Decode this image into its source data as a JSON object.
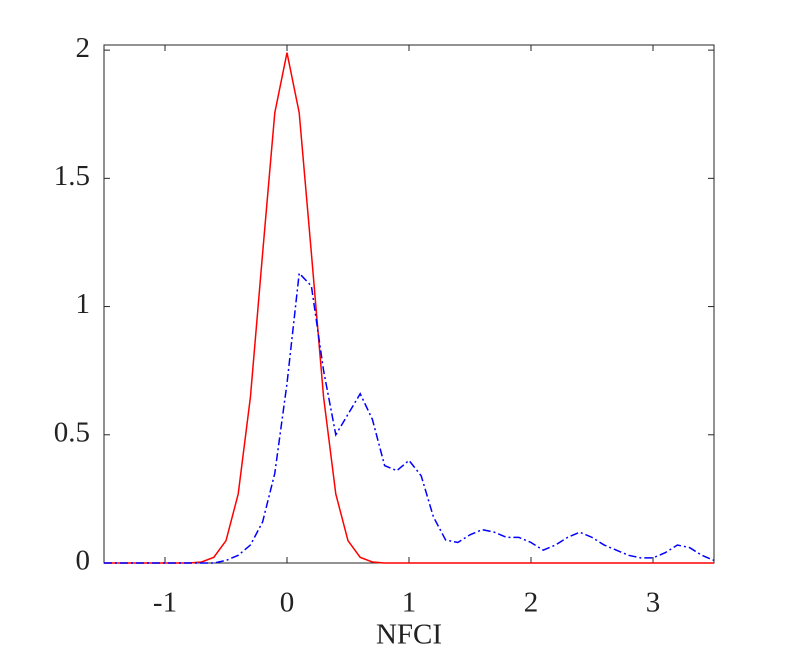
{
  "chart_data": {
    "type": "line",
    "x_label": "NFCI",
    "x": [
      -1.5,
      -1.4,
      -1.3,
      -1.2,
      -1.1,
      -1.0,
      -0.9,
      -0.8,
      -0.7,
      -0.6,
      -0.5,
      -0.4,
      -0.3,
      -0.2,
      -0.1,
      0,
      0.1,
      0.2,
      0.3,
      0.4,
      0.5,
      0.6,
      0.7,
      0.8,
      0.9,
      1.0,
      1.1,
      1.2,
      1.3,
      1.4,
      1.5,
      1.6,
      1.7,
      1.8,
      1.9,
      2.0,
      2.1,
      2.2,
      2.3,
      2.4,
      2.5,
      2.6,
      2.7,
      2.8,
      2.9,
      3.0,
      3.1,
      3.2,
      3.3,
      3.4,
      3.5
    ],
    "series": [
      {
        "color": "#ff0000",
        "dash": "solid",
        "values": [
          0,
          0,
          0,
          0,
          0,
          0,
          0,
          0,
          0.004,
          0.022,
          0.087,
          0.269,
          0.646,
          1.207,
          1.756,
          1.99,
          1.756,
          1.207,
          0.646,
          0.269,
          0.087,
          0.022,
          0.004,
          0,
          0,
          0,
          0,
          0,
          0,
          0,
          0,
          0,
          0,
          0,
          0,
          0,
          0,
          0,
          0,
          0,
          0,
          0,
          0,
          0,
          0,
          0,
          0,
          0,
          0,
          0,
          0
        ]
      },
      {
        "color": "#0000ff",
        "dash": "dashdot",
        "values": [
          0,
          0,
          0,
          0,
          0,
          0,
          0,
          0,
          0,
          0,
          0.01,
          0.03,
          0.07,
          0.16,
          0.35,
          0.7,
          1.13,
          1.08,
          0.75,
          0.5,
          0.58,
          0.66,
          0.56,
          0.38,
          0.36,
          0.4,
          0.34,
          0.18,
          0.09,
          0.08,
          0.11,
          0.13,
          0.12,
          0.1,
          0.1,
          0.08,
          0.05,
          0.07,
          0.1,
          0.12,
          0.1,
          0.07,
          0.05,
          0.03,
          0.02,
          0.02,
          0.04,
          0.07,
          0.06,
          0.03,
          0.01
        ]
      }
    ],
    "xlim": [
      -1.5,
      3.5
    ],
    "ylim": [
      0,
      2.02
    ],
    "xticks": [
      -1,
      0,
      1,
      2,
      3
    ],
    "yticks": [
      0,
      0.5,
      1,
      1.5,
      2
    ]
  }
}
